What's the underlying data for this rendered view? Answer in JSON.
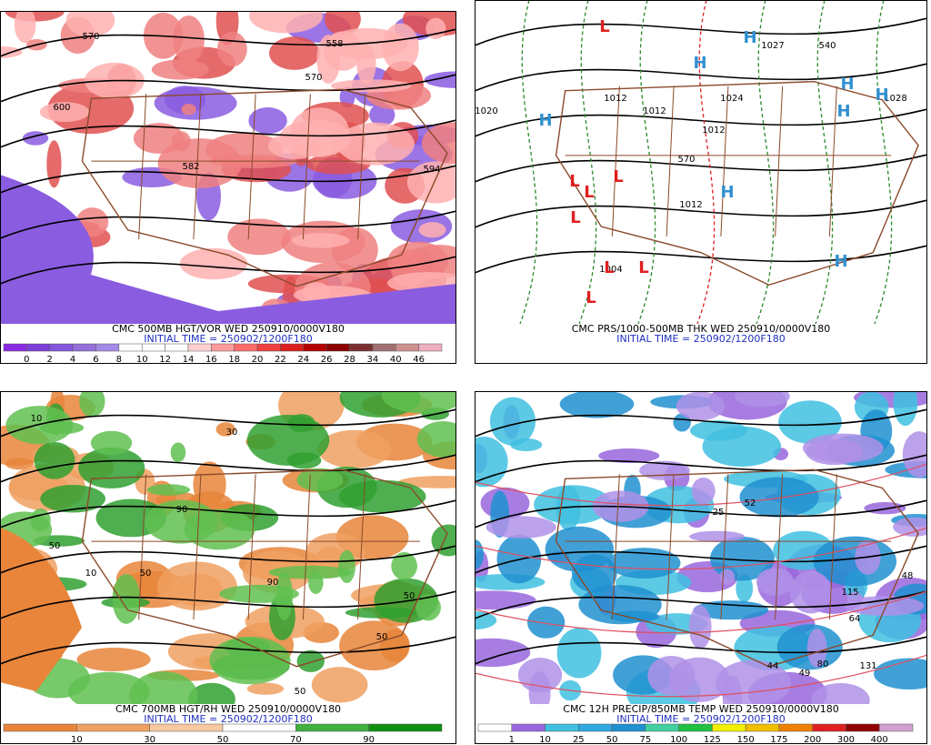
{
  "panels": [
    {
      "caption": "CMC 500MB HGT/VOR WED 250910/0000V180",
      "initial_time": "INITIAL TIME = 250902/1200F180",
      "colorbar": {
        "labels": [
          "0",
          "2",
          "4",
          "6",
          "8",
          "10",
          "12",
          "14",
          "16",
          "18",
          "20",
          "22",
          "24",
          "26",
          "28",
          "34",
          "40",
          "46"
        ],
        "colors": [
          "#8a2be2",
          "#7b3fd8",
          "#8456dc",
          "#9370db",
          "#a48ae6",
          "#ffffff",
          "#ffffff",
          "#ffffff",
          "#ffd0d0",
          "#ff9a9a",
          "#ff6a6a",
          "#f04040",
          "#dc1e1e",
          "#b40000",
          "#8b0000",
          "#7a3030",
          "#a07070",
          "#d09090",
          "#f0b0c0"
        ]
      },
      "map_labels": [
        "570",
        "558",
        "570",
        "600",
        "582",
        "594"
      ]
    },
    {
      "caption": "CMC PRS/1000-500MB THK WED 250910/0000V180",
      "initial_time": "INITIAL TIME = 250902/1200F180",
      "map_labels": [
        "1020",
        "1012",
        "1012",
        "1012",
        "1012",
        "1027",
        "1028",
        "1024",
        "570",
        "540",
        "1004"
      ],
      "lows": [
        "L",
        "L",
        "L",
        "L",
        "L",
        "L",
        "L",
        "L"
      ],
      "highs": [
        "H",
        "H",
        "H",
        "H",
        "H",
        "H",
        "H",
        "H"
      ]
    },
    {
      "caption": "CMC 700MB HGT/RH WED 250910/0000V180",
      "initial_time": "INITIAL TIME = 250902/1200F180",
      "colorbar": {
        "labels": [
          "10",
          "30",
          "50",
          "70",
          "90"
        ],
        "colors": [
          "#e8853a",
          "#f0a060",
          "#f8c8a0",
          "#ffffff",
          "#40b040",
          "#109010"
        ]
      },
      "map_labels": [
        "50",
        "50",
        "10",
        "30",
        "90",
        "50",
        "50",
        "10",
        "50",
        "90"
      ]
    },
    {
      "caption": "CMC 12H PRECIP/850MB TEMP WED 250910/0000V180",
      "initial_time": "INITIAL TIME = 250902/1200F180",
      "colorbar": {
        "labels": [
          "1",
          "10",
          "25",
          "50",
          "75",
          "100",
          "125",
          "150",
          "175",
          "200",
          "300",
          "400"
        ],
        "colors": [
          "#ffffff",
          "#9966dd",
          "#40c0e0",
          "#30a8e0",
          "#2090d0",
          "#40d0a0",
          "#20c040",
          "#f0f000",
          "#f0c000",
          "#f08000",
          "#e02020",
          "#900000",
          "#d0a0d0"
        ]
      },
      "map_labels": [
        "48",
        "115",
        "64",
        "80",
        "131",
        "44",
        "49",
        "52",
        "25"
      ]
    }
  ]
}
